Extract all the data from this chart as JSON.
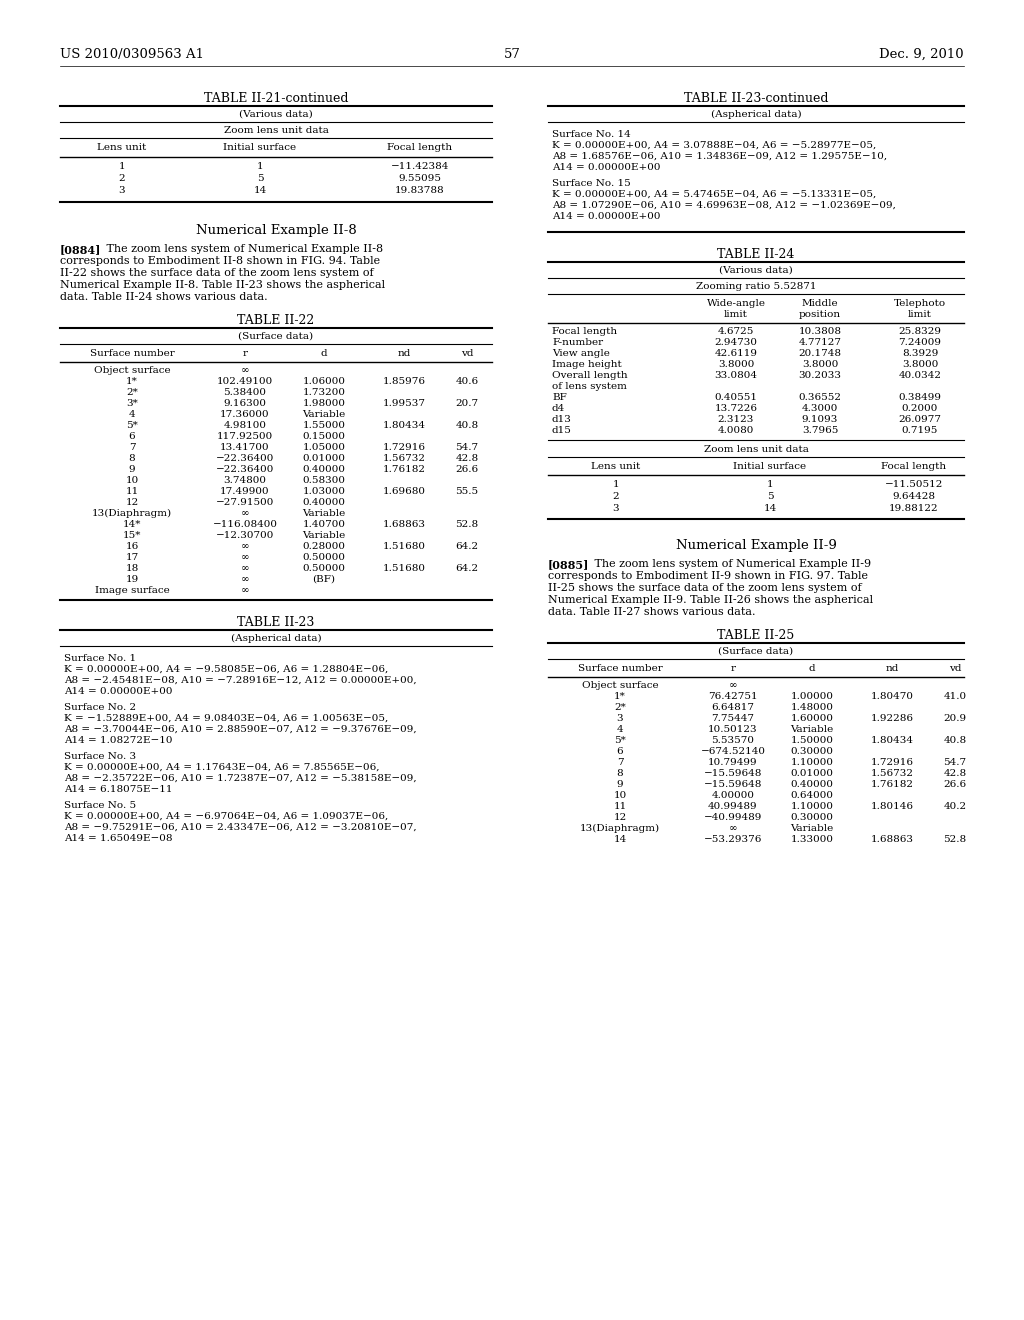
{
  "page_header_left": "US 2010/0309563 A1",
  "page_header_right": "Dec. 9, 2010",
  "page_number": "57",
  "background_color": "#ffffff",
  "text_color": "#000000",
  "table_ii21_continued": {
    "title": "TABLE II-21-continued",
    "subtitle": "(Various data)",
    "subsubtitle": "Zoom lens unit data",
    "headers": [
      "Lens unit",
      "Initial surface",
      "Focal length"
    ],
    "rows": [
      [
        "1",
        "1",
        "−11.42384"
      ],
      [
        "2",
        "5",
        "9.55095"
      ],
      [
        "3",
        "14",
        "19.83788"
      ]
    ]
  },
  "numerical_example_ii8_heading": "Numerical Example II-8",
  "table_ii22": {
    "title": "TABLE II-22",
    "subtitle": "(Surface data)",
    "headers": [
      "Surface number",
      "r",
      "d",
      "nd",
      "vd"
    ],
    "rows": [
      [
        "Object surface",
        "∞",
        "",
        "",
        ""
      ],
      [
        "1*",
        "102.49100",
        "1.06000",
        "1.85976",
        "40.6"
      ],
      [
        "2*",
        "5.38400",
        "1.73200",
        "",
        ""
      ],
      [
        "3*",
        "9.16300",
        "1.98000",
        "1.99537",
        "20.7"
      ],
      [
        "4",
        "17.36000",
        "Variable",
        "",
        ""
      ],
      [
        "5*",
        "4.98100",
        "1.55000",
        "1.80434",
        "40.8"
      ],
      [
        "6",
        "117.92500",
        "0.15000",
        "",
        ""
      ],
      [
        "7",
        "13.41700",
        "1.05000",
        "1.72916",
        "54.7"
      ],
      [
        "8",
        "−22.36400",
        "0.01000",
        "1.56732",
        "42.8"
      ],
      [
        "9",
        "−22.36400",
        "0.40000",
        "1.76182",
        "26.6"
      ],
      [
        "10",
        "3.74800",
        "0.58300",
        "",
        ""
      ],
      [
        "11",
        "17.49900",
        "1.03000",
        "1.69680",
        "55.5"
      ],
      [
        "12",
        "−27.91500",
        "0.40000",
        "",
        ""
      ],
      [
        "13(Diaphragm)",
        "∞",
        "Variable",
        "",
        ""
      ],
      [
        "14*",
        "−116.08400",
        "1.40700",
        "1.68863",
        "52.8"
      ],
      [
        "15*",
        "−12.30700",
        "Variable",
        "",
        ""
      ],
      [
        "16",
        "∞",
        "0.28000",
        "1.51680",
        "64.2"
      ],
      [
        "17",
        "∞",
        "0.50000",
        "",
        ""
      ],
      [
        "18",
        "∞",
        "0.50000",
        "1.51680",
        "64.2"
      ],
      [
        "19",
        "∞",
        "(BF)",
        "",
        ""
      ],
      [
        "Image surface",
        "∞",
        "",
        "",
        ""
      ]
    ]
  },
  "table_ii23": {
    "title": "TABLE II-23",
    "subtitle": "(Aspherical data)",
    "text_blocks": [
      [
        "Surface No. 1",
        "K = 0.00000E+00, A4 = −9.58085E−06, A6 = 1.28804E−06,",
        "A8 = −2.45481E−08, A10 = −7.28916E−12, A12 = 0.00000E+00,",
        "A14 = 0.00000E+00"
      ],
      [
        "Surface No. 2",
        "K = −1.52889E+00, A4 = 9.08403E−04, A6 = 1.00563E−05,",
        "A8 = −3.70044E−06, A10 = 2.88590E−07, A12 = −9.37676E−09,",
        "A14 = 1.08272E−10"
      ],
      [
        "Surface No. 3",
        "K = 0.00000E+00, A4 = 1.17643E−04, A6 = 7.85565E−06,",
        "A8 = −2.35722E−06, A10 = 1.72387E−07, A12 = −5.38158E−09,",
        "A14 = 6.18075E−11"
      ],
      [
        "Surface No. 5",
        "K = 0.00000E+00, A4 = −6.97064E−04, A6 = 1.09037E−06,",
        "A8 = −9.75291E−06, A10 = 2.43347E−06, A12 = −3.20810E−07,",
        "A14 = 1.65049E−08"
      ]
    ]
  },
  "table_ii23_continued_right": {
    "title": "TABLE II-23-continued",
    "subtitle": "(Aspherical data)",
    "text_blocks": [
      [
        "Surface No. 14",
        "K = 0.00000E+00, A4 = 3.07888E−04, A6 = −5.28977E−05,",
        "A8 = 1.68576E−06, A10 = 1.34836E−09, A12 = 1.29575E−10,",
        "A14 = 0.00000E+00"
      ],
      [
        "Surface No. 15",
        "K = 0.00000E+00, A4 = 5.47465E−04, A6 = −5.13331E−05,",
        "A8 = 1.07290E−06, A10 = 4.69963E−08, A12 = −1.02369E−09,",
        "A14 = 0.00000E+00"
      ]
    ]
  },
  "table_ii24": {
    "title": "TABLE II-24",
    "subtitle": "(Various data)",
    "subsubtitle": "Zooming ratio 5.52871",
    "col_headers": [
      "",
      "Wide-angle\nlimit",
      "Middle\nposition",
      "Telephoto\nlimit"
    ],
    "rows": [
      [
        "Focal length",
        "4.6725",
        "10.3808",
        "25.8329"
      ],
      [
        "F-number",
        "2.94730",
        "4.77127",
        "7.24009"
      ],
      [
        "View angle",
        "42.6119",
        "20.1748",
        "8.3929"
      ],
      [
        "Image height",
        "3.8000",
        "3.8000",
        "3.8000"
      ],
      [
        "Overall length",
        "33.0804",
        "30.2033",
        "40.0342"
      ],
      [
        "of lens system",
        "",
        "",
        ""
      ],
      [
        "BF",
        "0.40551",
        "0.36552",
        "0.38499"
      ],
      [
        "d4",
        "13.7226",
        "4.3000",
        "0.2000"
      ],
      [
        "d13",
        "2.3123",
        "9.1093",
        "26.0977"
      ],
      [
        "d15",
        "4.0080",
        "3.7965",
        "0.7195"
      ]
    ],
    "zoom_lens_unit_data_title": "Zoom lens unit data",
    "zoom_headers": [
      "Lens unit",
      "Initial surface",
      "Focal length"
    ],
    "zoom_rows": [
      [
        "1",
        "1",
        "−11.50512"
      ],
      [
        "2",
        "5",
        "9.64428"
      ],
      [
        "3",
        "14",
        "19.88122"
      ]
    ]
  },
  "numerical_example_ii9_heading": "Numerical Example II-9",
  "table_ii25": {
    "title": "TABLE II-25",
    "subtitle": "(Surface data)",
    "headers": [
      "Surface number",
      "r",
      "d",
      "nd",
      "vd"
    ],
    "rows": [
      [
        "Object surface",
        "∞",
        "",
        "",
        ""
      ],
      [
        "1*",
        "76.42751",
        "1.00000",
        "1.80470",
        "41.0"
      ],
      [
        "2*",
        "6.64817",
        "1.48000",
        "",
        ""
      ],
      [
        "3",
        "7.75447",
        "1.60000",
        "1.92286",
        "20.9"
      ],
      [
        "4",
        "10.50123",
        "Variable",
        "",
        ""
      ],
      [
        "5*",
        "5.53570",
        "1.50000",
        "1.80434",
        "40.8"
      ],
      [
        "6",
        "−674.52140",
        "0.30000",
        "",
        ""
      ],
      [
        "7",
        "10.79499",
        "1.10000",
        "1.72916",
        "54.7"
      ],
      [
        "8",
        "−15.59648",
        "0.01000",
        "1.56732",
        "42.8"
      ],
      [
        "9",
        "−15.59648",
        "0.40000",
        "1.76182",
        "26.6"
      ],
      [
        "10",
        "4.00000",
        "0.64000",
        "",
        ""
      ],
      [
        "11",
        "40.99489",
        "1.10000",
        "1.80146",
        "40.2"
      ],
      [
        "12",
        "−40.99489",
        "0.30000",
        "",
        ""
      ],
      [
        "13(Diaphragm)",
        "∞",
        "Variable",
        "",
        ""
      ],
      [
        "14",
        "−53.29376",
        "1.33000",
        "1.68863",
        "52.8"
      ]
    ]
  }
}
